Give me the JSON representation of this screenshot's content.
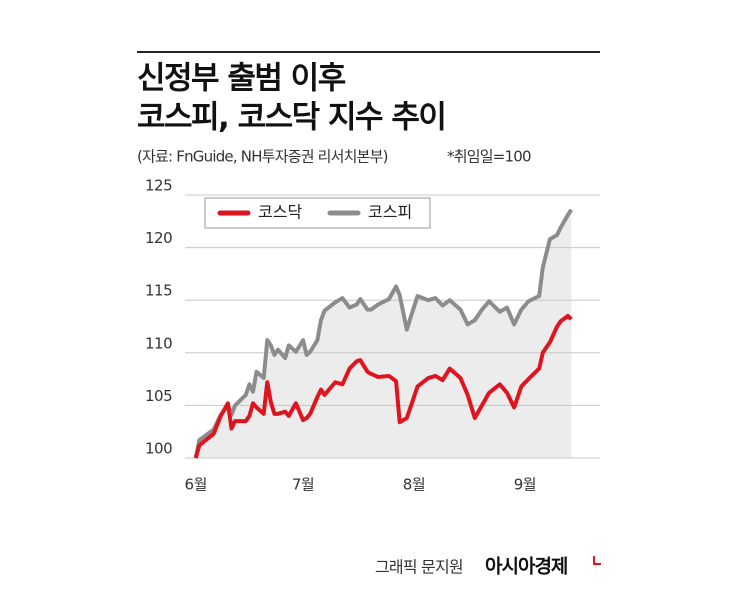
{
  "chart_data": {
    "type": "line",
    "title": [
      "신정부 출범 이후",
      "코스피, 코스닥 지수 추이"
    ],
    "source": "(자료: FnGuide, NH투자증권 리서치본부)",
    "note": "*취임일=100",
    "credit": "그래픽 문지원",
    "publisher": "아시아경제",
    "x": [
      1,
      2,
      6,
      8,
      10,
      11,
      12,
      15,
      16,
      17,
      18,
      20,
      21,
      22,
      23,
      24,
      26,
      27,
      29,
      31,
      32,
      33,
      35,
      36,
      37,
      40,
      42,
      44,
      46,
      47,
      49,
      50,
      52,
      55,
      57,
      58,
      60,
      61,
      63,
      66,
      68,
      70,
      72,
      75,
      77,
      79,
      81,
      83,
      86,
      88,
      90,
      92,
      94,
      97,
      98,
      100,
      102,
      103,
      105,
      106
    ],
    "series": [
      {
        "name": "코스닥",
        "color": "#e0141e",
        "values": [
          100,
          101.2,
          102.3,
          104,
          105.2,
          102.8,
          103.5,
          103.5,
          104,
          105.2,
          104.8,
          104.2,
          107.2,
          105.3,
          104.2,
          104.2,
          104.4,
          104,
          105.2,
          103.6,
          103.8,
          104.2,
          105.8,
          106.5,
          106,
          107.2,
          107,
          108.5,
          109.2,
          109.3,
          108.2,
          108,
          107.7,
          107.8,
          107.3,
          103.4,
          103.8,
          104.8,
          106.8,
          107.6,
          107.8,
          107.4,
          108.5,
          107.6,
          106,
          103.8,
          105,
          106.2,
          107,
          106.2,
          104.8,
          106.8,
          107.5,
          108.5,
          110,
          111,
          112.5,
          113,
          113.5,
          113.2
        ]
      },
      {
        "name": "코스피",
        "color": "#8c8c8c",
        "area_color": "#ececec",
        "values": [
          100,
          101.7,
          102.7,
          104.1,
          105,
          104.1,
          105,
          106,
          107,
          106.3,
          108.2,
          107.6,
          111.2,
          110.7,
          109.8,
          110.3,
          109.5,
          110.7,
          110.1,
          111.2,
          109.8,
          110.1,
          111.2,
          113.1,
          114,
          114.8,
          115.2,
          114.3,
          114.6,
          115.1,
          114.1,
          114.1,
          114.6,
          115.1,
          116.3,
          115.5,
          112.2,
          113.3,
          115.4,
          115,
          115.2,
          114.5,
          115,
          114.1,
          112.7,
          113.1,
          114.1,
          114.9,
          113.9,
          114.3,
          112.7,
          114.1,
          114.9,
          115.4,
          118.1,
          120.8,
          121.2,
          121.9,
          123.1,
          123.6
        ]
      }
    ],
    "xlim": [
      -2,
      114
    ],
    "xticks": [
      {
        "value": 1,
        "label": "6월"
      },
      {
        "value": 31,
        "label": "7월"
      },
      {
        "value": 62,
        "label": "8월"
      },
      {
        "value": 93,
        "label": "9월"
      }
    ],
    "ylim": [
      100,
      125
    ],
    "yticks": [
      100,
      105,
      110,
      115,
      120,
      125
    ],
    "grid": true
  }
}
